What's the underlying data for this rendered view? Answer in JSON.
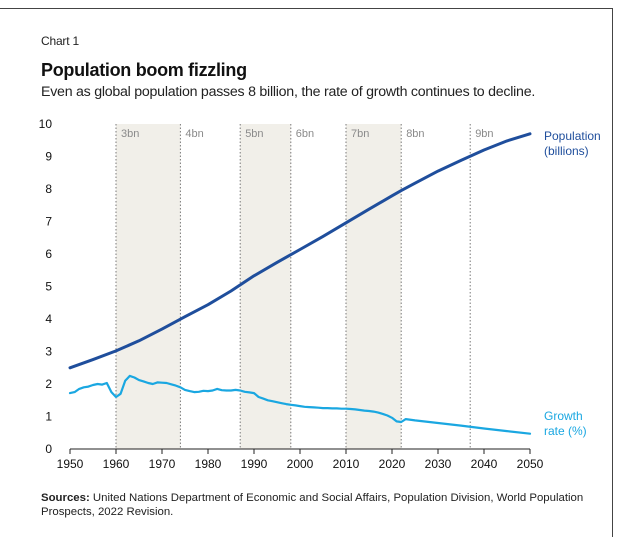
{
  "header": {
    "kicker": "Chart 1",
    "title": "Population boom fizzling",
    "subtitle": "Even as global population passes 8 billion, the rate of growth continues to decline."
  },
  "footer": {
    "sources_label": "Sources:",
    "sources_text": " United Nations Department of Economic and Social Affairs, Population Division, World Population Prospects, 2022 Revision."
  },
  "colors": {
    "population": "#1f4e9c",
    "growth": "#1aa7e1",
    "shade": "#f1efe9",
    "gridline": "#7a7a7a"
  },
  "chart_data": {
    "type": "line",
    "xlim": [
      1950,
      2050
    ],
    "ylim": [
      0,
      10
    ],
    "x_ticks": [
      1950,
      1960,
      1970,
      1980,
      1990,
      2000,
      2010,
      2020,
      2030,
      2040,
      2050
    ],
    "y_ticks": [
      0,
      1,
      2,
      3,
      4,
      5,
      6,
      7,
      8,
      9,
      10
    ],
    "grid": false,
    "milestones": [
      {
        "year": 1960,
        "label": "3bn"
      },
      {
        "year": 1974,
        "label": "4bn"
      },
      {
        "year": 1987,
        "label": "5bn"
      },
      {
        "year": 1998,
        "label": "6bn"
      },
      {
        "year": 2010,
        "label": "7bn"
      },
      {
        "year": 2022,
        "label": "8bn"
      },
      {
        "year": 2037,
        "label": "9bn"
      }
    ],
    "shaded_regions": [
      [
        1960,
        1974
      ],
      [
        1987,
        1998
      ],
      [
        2010,
        2022
      ]
    ],
    "series": [
      {
        "name": "Population (billions)",
        "label_lines": [
          "Population",
          "(billions)"
        ],
        "x": [
          1950,
          1955,
          1960,
          1965,
          1970,
          1975,
          1980,
          1985,
          1990,
          1995,
          2000,
          2005,
          2010,
          2015,
          2020,
          2022,
          2025,
          2030,
          2035,
          2040,
          2045,
          2050
        ],
        "y": [
          2.5,
          2.75,
          3.02,
          3.33,
          3.69,
          4.07,
          4.44,
          4.86,
          5.33,
          5.74,
          6.14,
          6.54,
          6.96,
          7.38,
          7.79,
          7.95,
          8.18,
          8.55,
          8.88,
          9.2,
          9.48,
          9.7
        ]
      },
      {
        "name": "Growth rate (%)",
        "label_lines": [
          "Growth",
          "rate (%)"
        ],
        "x": [
          1950,
          1951,
          1952,
          1953,
          1954,
          1955,
          1956,
          1957,
          1958,
          1959,
          1960,
          1961,
          1962,
          1963,
          1964,
          1965,
          1966,
          1967,
          1968,
          1969,
          1970,
          1971,
          1972,
          1973,
          1974,
          1975,
          1976,
          1977,
          1978,
          1979,
          1980,
          1981,
          1982,
          1983,
          1984,
          1985,
          1986,
          1987,
          1988,
          1989,
          1990,
          1991,
          1992,
          1993,
          1994,
          1995,
          1996,
          1997,
          1998,
          1999,
          2000,
          2001,
          2002,
          2003,
          2004,
          2005,
          2006,
          2007,
          2008,
          2009,
          2010,
          2011,
          2012,
          2013,
          2014,
          2015,
          2016,
          2017,
          2018,
          2019,
          2020,
          2021,
          2022,
          2023,
          2025,
          2030,
          2035,
          2040,
          2045,
          2050
        ],
        "y": [
          1.72,
          1.75,
          1.85,
          1.9,
          1.92,
          1.97,
          2.0,
          1.98,
          2.03,
          1.75,
          1.6,
          1.7,
          2.1,
          2.25,
          2.2,
          2.12,
          2.08,
          2.03,
          2.0,
          2.05,
          2.04,
          2.03,
          1.99,
          1.95,
          1.9,
          1.82,
          1.78,
          1.75,
          1.76,
          1.79,
          1.78,
          1.8,
          1.85,
          1.81,
          1.8,
          1.8,
          1.82,
          1.8,
          1.76,
          1.74,
          1.72,
          1.6,
          1.55,
          1.5,
          1.47,
          1.44,
          1.41,
          1.38,
          1.36,
          1.34,
          1.32,
          1.3,
          1.29,
          1.28,
          1.27,
          1.26,
          1.26,
          1.25,
          1.25,
          1.24,
          1.24,
          1.23,
          1.22,
          1.2,
          1.18,
          1.17,
          1.15,
          1.12,
          1.08,
          1.03,
          0.96,
          0.85,
          0.83,
          0.92,
          0.88,
          0.8,
          0.72,
          0.63,
          0.55,
          0.47
        ]
      }
    ]
  }
}
